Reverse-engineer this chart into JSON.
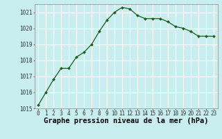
{
  "x": [
    0,
    1,
    2,
    3,
    4,
    5,
    6,
    7,
    8,
    9,
    10,
    11,
    12,
    13,
    14,
    15,
    16,
    17,
    18,
    19,
    20,
    21,
    22,
    23
  ],
  "y": [
    1015.2,
    1016.0,
    1016.8,
    1017.5,
    1017.5,
    1018.2,
    1018.5,
    1019.0,
    1019.8,
    1020.5,
    1021.0,
    1021.3,
    1021.2,
    1020.8,
    1020.6,
    1020.6,
    1020.6,
    1020.4,
    1020.1,
    1020.0,
    1019.8,
    1019.5,
    1019.5,
    1019.5
  ],
  "line_color": "#1a5c1a",
  "marker": "D",
  "marker_size": 2.0,
  "bg_color": "#c8eef0",
  "grid_color": "#b0dde0",
  "title": "Graphe pression niveau de la mer (hPa)",
  "ylim": [
    1015,
    1021.5
  ],
  "xlim": [
    -0.5,
    23.5
  ],
  "yticks": [
    1015,
    1016,
    1017,
    1018,
    1019,
    1020,
    1021
  ],
  "xticks": [
    0,
    1,
    2,
    3,
    4,
    5,
    6,
    7,
    8,
    9,
    10,
    11,
    12,
    13,
    14,
    15,
    16,
    17,
    18,
    19,
    20,
    21,
    22,
    23
  ],
  "tick_fontsize": 5.5,
  "title_fontsize": 7.5,
  "title_fontweight": "bold",
  "spine_color": "#888888",
  "white_grid": "#ffffff"
}
